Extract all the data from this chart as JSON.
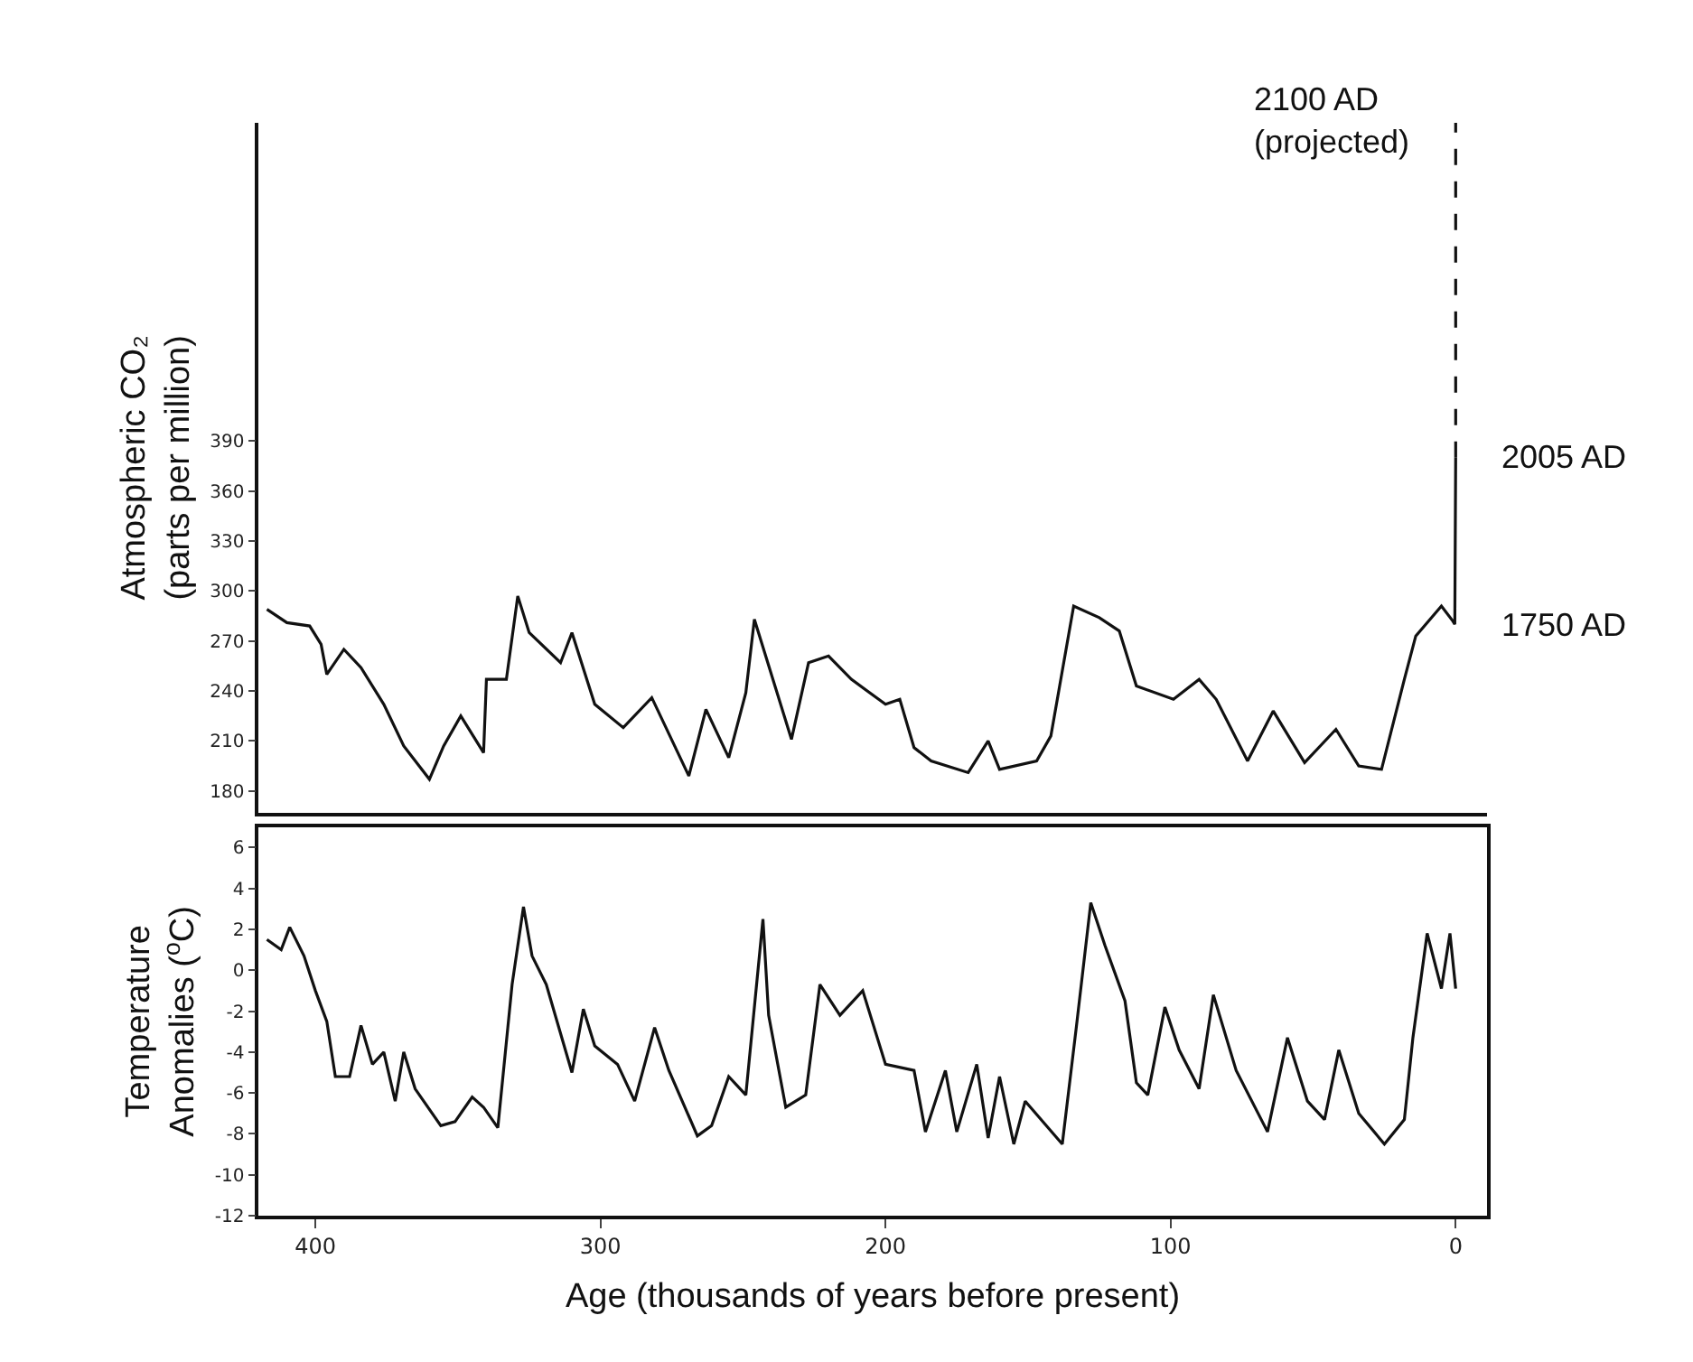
{
  "chart_data": [
    {
      "type": "line",
      "ylabel": "Atmospheric CO₂\n(parts per million)",
      "xlim": [
        420,
        -11
      ],
      "ylim": [
        167,
        581
      ],
      "yticks": [
        180,
        210,
        240,
        270,
        300,
        330,
        360,
        390
      ],
      "tick_labels": "y",
      "marker": "none",
      "line_style": "solid",
      "series": [
        {
          "color": "#111111",
          "x": [
            417,
            410,
            402,
            398,
            396,
            390,
            384,
            376,
            369,
            360,
            355,
            349,
            341,
            340,
            333,
            329,
            325,
            314,
            310,
            302,
            292,
            282,
            269,
            263,
            255,
            249,
            246,
            233,
            227,
            220,
            212,
            200,
            195,
            190,
            184,
            171,
            164,
            160,
            147,
            142,
            134,
            125,
            118,
            112,
            99,
            90,
            84,
            73,
            64,
            53,
            42,
            34,
            26,
            18,
            14,
            5,
            1,
            0.3,
            0
          ],
          "values": [
            289,
            281,
            279,
            268,
            250,
            265,
            254,
            232,
            207,
            187,
            207,
            225,
            203,
            247,
            247,
            297,
            275,
            257,
            275,
            232,
            218,
            236,
            189,
            229,
            200,
            239,
            283,
            211,
            257,
            261,
            247,
            232,
            235,
            206,
            198,
            191,
            210,
            193,
            198,
            213,
            291,
            284,
            276,
            243,
            235,
            247,
            235,
            198,
            228,
            197,
            217,
            195,
            193,
            247,
            273,
            291,
            282,
            280,
            380
          ]
        },
        {
          "color": "#111111",
          "line_style": "dashed",
          "x": [
            0,
            0
          ],
          "values": [
            380,
            581
          ]
        }
      ],
      "annotations": [
        "2100 AD\n(projected)",
        "2005 AD",
        "1750 AD"
      ]
    },
    {
      "type": "line",
      "ylabel": "Temperature\nAnomalies ($^{o}$C)",
      "xlabel": "Age (thousands of years before present)",
      "xlim": [
        420,
        -11
      ],
      "xticks": [
        400,
        300,
        200,
        100,
        0
      ],
      "ylim": [
        -12,
        7
      ],
      "yticks": [
        6,
        4,
        2,
        0,
        -2,
        -4,
        -6,
        -8,
        -10,
        -12
      ],
      "marker": "none",
      "line_style": "solid",
      "series": [
        {
          "color": "#111111",
          "x": [
            417,
            412,
            409,
            404,
            400,
            396,
            393,
            388,
            384,
            380,
            376,
            372,
            369,
            365,
            356,
            351,
            345,
            341,
            336,
            331,
            327,
            324,
            319,
            310,
            306,
            302,
            294,
            288,
            281,
            276,
            266,
            261,
            255,
            249,
            243,
            241,
            235,
            228,
            223,
            216,
            208,
            200,
            190,
            186,
            179,
            175,
            168,
            164,
            160,
            155,
            151,
            138,
            133,
            128,
            123,
            116,
            112,
            108,
            102,
            97,
            90,
            85,
            77,
            66,
            59,
            52,
            46,
            41,
            34,
            25,
            18,
            15,
            10,
            5,
            2,
            0
          ],
          "values": [
            1.5,
            1.0,
            2.1,
            0.7,
            -1.0,
            -2.5,
            -5.2,
            -5.2,
            -2.7,
            -4.6,
            -4.0,
            -6.4,
            -4.0,
            -5.8,
            -7.6,
            -7.4,
            -6.2,
            -6.7,
            -7.7,
            -0.7,
            3.1,
            0.7,
            -0.7,
            -5.0,
            -1.9,
            -3.7,
            -4.6,
            -6.4,
            -2.8,
            -4.9,
            -8.1,
            -7.6,
            -5.2,
            -6.1,
            2.5,
            -2.2,
            -6.7,
            -6.1,
            -0.7,
            -2.2,
            -1.0,
            -4.6,
            -4.9,
            -7.9,
            -4.9,
            -7.9,
            -4.6,
            -8.2,
            -5.2,
            -8.5,
            -6.4,
            -8.5,
            -2.7,
            3.3,
            1.2,
            -1.5,
            -5.5,
            -6.1,
            -1.8,
            -3.9,
            -5.8,
            -1.2,
            -4.9,
            -7.9,
            -3.3,
            -6.4,
            -7.3,
            -3.9,
            -7.0,
            -8.5,
            -7.3,
            -3.3,
            1.8,
            -0.9,
            1.8,
            -0.9
          ]
        }
      ]
    }
  ]
}
